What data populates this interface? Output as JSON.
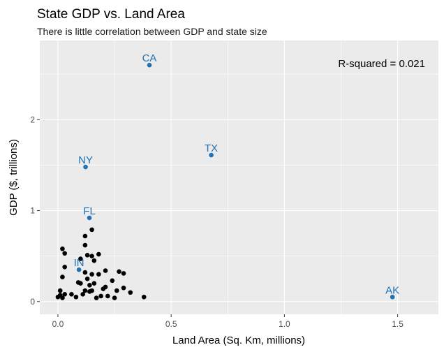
{
  "chart_data": {
    "type": "scatter",
    "title": "State GDP vs. Land Area",
    "subtitle": "There is little correlation between GDP and state size",
    "xlabel": "Land Area (Sq. Km, millions)",
    "ylabel": "GDP ($, trillions)",
    "xlim": [
      -0.08,
      1.68
    ],
    "ylim": [
      -0.14,
      2.87
    ],
    "x_ticks": [
      0.0,
      0.5,
      1.0,
      1.5
    ],
    "x_tick_labels": [
      "0.0",
      "0.5",
      "1.0",
      "1.5"
    ],
    "y_ticks": [
      0,
      1,
      2
    ],
    "y_tick_labels": [
      "0",
      "1",
      "2"
    ],
    "grid": true,
    "legend": "none",
    "annotation": "R-squared = 0.021",
    "colors": {
      "panel": "#ebebeb",
      "grid_major": "#ffffff",
      "point": "#000000",
      "highlight": "#2171b5"
    },
    "highlighted": [
      {
        "label": "CA",
        "x": 0.404,
        "y": 2.6
      },
      {
        "label": "TX",
        "x": 0.677,
        "y": 1.61
      },
      {
        "label": "NY",
        "x": 0.122,
        "y": 1.48
      },
      {
        "label": "FL",
        "x": 0.139,
        "y": 0.92
      },
      {
        "label": "IN",
        "x": 0.093,
        "y": 0.35
      },
      {
        "label": "AK",
        "x": 1.477,
        "y": 0.05
      }
    ],
    "points": [
      {
        "x": 0.01,
        "y": 0.12
      },
      {
        "x": 0.0,
        "y": 0.05
      },
      {
        "x": 0.01,
        "y": 0.07
      },
      {
        "x": 0.03,
        "y": 0.08
      },
      {
        "x": 0.02,
        "y": 0.04
      },
      {
        "x": 0.02,
        "y": 0.27
      },
      {
        "x": 0.03,
        "y": 0.38
      },
      {
        "x": 0.03,
        "y": 0.53
      },
      {
        "x": 0.02,
        "y": 0.58
      },
      {
        "x": 0.06,
        "y": 0.08
      },
      {
        "x": 0.08,
        "y": 0.05
      },
      {
        "x": 0.09,
        "y": 0.21
      },
      {
        "x": 0.1,
        "y": 0.47
      },
      {
        "x": 0.1,
        "y": 0.2
      },
      {
        "x": 0.11,
        "y": 0.08
      },
      {
        "x": 0.12,
        "y": 0.32
      },
      {
        "x": 0.12,
        "y": 0.12
      },
      {
        "x": 0.12,
        "y": 0.62
      },
      {
        "x": 0.12,
        "y": 0.72
      },
      {
        "x": 0.13,
        "y": 0.51
      },
      {
        "x": 0.13,
        "y": 0.25
      },
      {
        "x": 0.14,
        "y": 0.18
      },
      {
        "x": 0.14,
        "y": 0.11
      },
      {
        "x": 0.15,
        "y": 0.79
      },
      {
        "x": 0.15,
        "y": 0.5
      },
      {
        "x": 0.15,
        "y": 0.3
      },
      {
        "x": 0.15,
        "y": 0.12
      },
      {
        "x": 0.16,
        "y": 0.45
      },
      {
        "x": 0.16,
        "y": 0.2
      },
      {
        "x": 0.17,
        "y": 0.04
      },
      {
        "x": 0.18,
        "y": 0.52
      },
      {
        "x": 0.18,
        "y": 0.3
      },
      {
        "x": 0.19,
        "y": 0.06
      },
      {
        "x": 0.2,
        "y": 0.14
      },
      {
        "x": 0.21,
        "y": 0.34
      },
      {
        "x": 0.21,
        "y": 0.16
      },
      {
        "x": 0.22,
        "y": 0.06
      },
      {
        "x": 0.24,
        "y": 0.23
      },
      {
        "x": 0.25,
        "y": 0.04
      },
      {
        "x": 0.26,
        "y": 0.12
      },
      {
        "x": 0.27,
        "y": 0.33
      },
      {
        "x": 0.29,
        "y": 0.15
      },
      {
        "x": 0.29,
        "y": 0.31
      },
      {
        "x": 0.32,
        "y": 0.1
      },
      {
        "x": 0.38,
        "y": 0.05
      }
    ]
  }
}
